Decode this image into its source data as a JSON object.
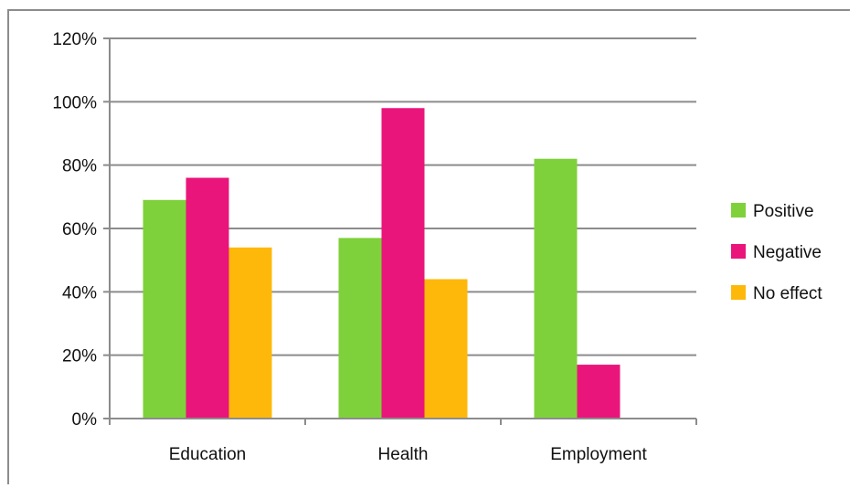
{
  "chart_data": {
    "type": "bar",
    "categories": [
      "Education",
      "Health",
      "Employment"
    ],
    "series": [
      {
        "name": "Positive",
        "values": [
          69,
          57,
          82
        ],
        "color": "#7fd13b"
      },
      {
        "name": "Negative",
        "values": [
          76,
          98,
          17
        ],
        "color": "#ea157a"
      },
      {
        "name": "No effect",
        "values": [
          54,
          44,
          0
        ],
        "color": "#feb80a"
      }
    ],
    "y_ticks": [
      "0%",
      "20%",
      "40%",
      "60%",
      "80%",
      "100%",
      "120%"
    ],
    "ylim": [
      0,
      120
    ],
    "grid": true,
    "legend_position": "right",
    "title": "",
    "xlabel": "",
    "ylabel": ""
  }
}
